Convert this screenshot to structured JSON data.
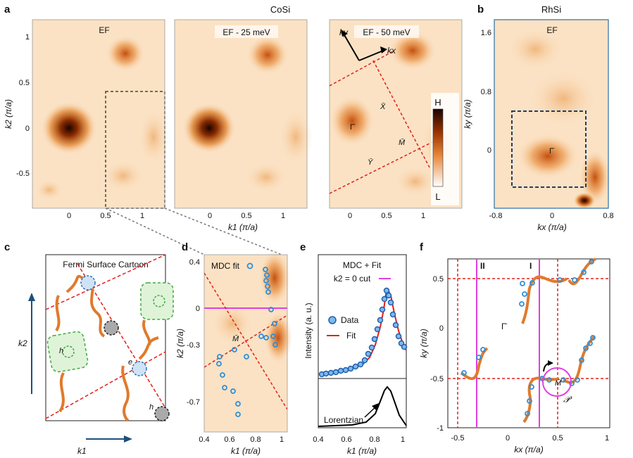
{
  "panel_labels": {
    "a": "a",
    "b": "b",
    "c": "c",
    "d": "d",
    "e": "e",
    "f": "f"
  },
  "panel_a": {
    "title": "CoSi",
    "sub_labels": [
      "EF",
      "EF - 25 meV",
      "EF - 50 meV"
    ],
    "y_ticks": [
      "1",
      "0.5",
      "0",
      "-0.5"
    ],
    "x_ticks": [
      "0",
      "0.5",
      "1"
    ],
    "x_label": "k1 (π/a)",
    "y_label": "k2 (π/a)",
    "axis_kx": "kx",
    "axis_ky": "ky",
    "point_gamma": "Γ̄",
    "point_x": "X̄",
    "point_y": "Ȳ",
    "point_m": "M̄",
    "colorbar_high": "H",
    "colorbar_low": "L"
  },
  "panel_b": {
    "title": "RhSi",
    "sub_label": "EF",
    "y_ticks": [
      "1.6",
      "0.8",
      "0"
    ],
    "x_ticks": [
      "-0.8",
      "0",
      "0.8"
    ],
    "x_label": "kx (π/a)",
    "y_label": "ky (π/a)",
    "point_gamma": "Γ̄"
  },
  "panel_c": {
    "title": "Fermi Surface Cartoon",
    "x_label": "k1",
    "y_label": "k2",
    "h_label": "h",
    "e_label": "e"
  },
  "panel_d": {
    "legend": "MDC fit",
    "y_ticks": [
      "0.4",
      "0",
      "-0.3",
      "-0.7"
    ],
    "x_ticks": [
      "0.4",
      "0.6",
      "0.8",
      "1"
    ],
    "x_label": "k1 (π/a)",
    "y_label": "k2 (π/a)",
    "point_m": "M̄"
  },
  "panel_e": {
    "title_line1": "MDC + Fit",
    "title_line2": "k2 = 0 cut",
    "legend_data": "Data",
    "legend_fit": "Fit",
    "lorentzian": "Lorentzian",
    "y_label": "Intensity (a. u.)",
    "x_ticks": [
      "0.4",
      "0.6",
      "0.8",
      "1"
    ],
    "x_label": "k1 (π/a)"
  },
  "panel_f": {
    "region_ii": "II",
    "region_i": "I",
    "y_ticks": [
      "0.5",
      "0",
      "-0.5",
      "-1"
    ],
    "x_ticks": [
      "-0.5",
      "0",
      "0.5",
      "1"
    ],
    "x_label": "kx (π/a)",
    "y_label": "ky (π/a)",
    "point_gamma": "Γ̄",
    "point_m": "M̄",
    "point_p": "𝒫"
  },
  "colors": {
    "orange": "#e07a2c",
    "red_dash": "#e0201c",
    "blue_dash": "#1e3f66",
    "magenta": "#e040e0",
    "data_blue": "#2f8fd8",
    "green": "#3faa3f",
    "rhsi_title": "#2a6fa8"
  }
}
